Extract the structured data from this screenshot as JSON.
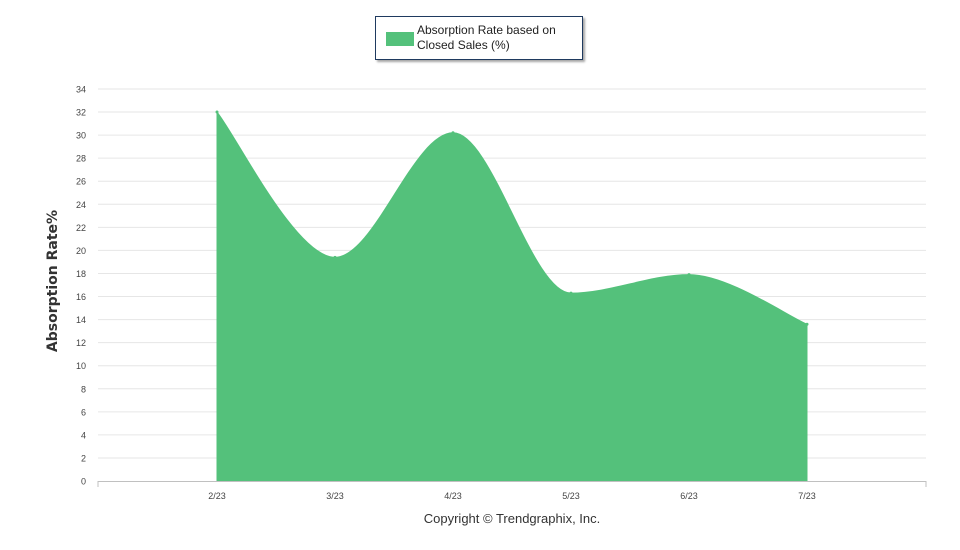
{
  "chart_data": {
    "type": "area",
    "categories": [
      "2/23",
      "3/23",
      "4/23",
      "5/23",
      "6/23",
      "7/23"
    ],
    "series": [
      {
        "name": "Absorption Rate based on Closed Sales (%)",
        "values": [
          32,
          19.4,
          30.2,
          16.3,
          17.9,
          13.6
        ],
        "color": "#54c17b"
      }
    ],
    "xlabel": "",
    "ylabel": "Absorption Rate%",
    "ylim": [
      0,
      34
    ],
    "y_ticks": [
      0,
      2,
      4,
      6,
      8,
      10,
      12,
      14,
      16,
      18,
      20,
      22,
      24,
      26,
      28,
      30,
      32,
      34
    ],
    "grid": true,
    "legend": "top-center",
    "copyright": "Copyright © Trendgraphix, Inc."
  }
}
